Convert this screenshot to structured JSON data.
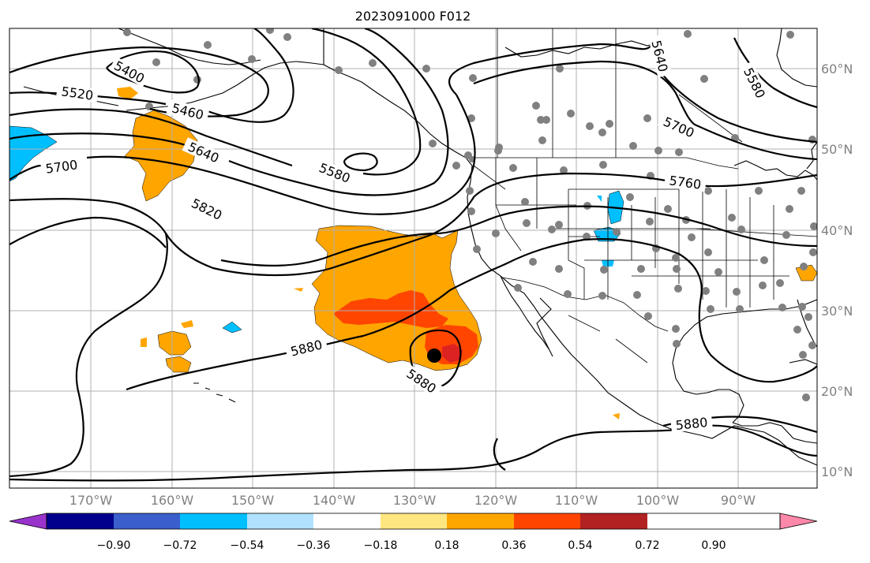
{
  "title": "2023091000 F012",
  "lon_labels": [
    "170°W",
    "160°W",
    "150°W",
    "140°W",
    "130°W",
    "120°W",
    "110°W",
    "100°W",
    "90°W"
  ],
  "lat_labels": [
    "10°N",
    "20°N",
    "30°N",
    "40°N",
    "50°N",
    "60°N"
  ],
  "colorbar": {
    "tick_labels": [
      "−0.90",
      "−0.72",
      "−0.54",
      "−0.36",
      "−0.18",
      "0.18",
      "0.36",
      "0.54",
      "0.72",
      "0.90"
    ],
    "colors": [
      "#9933cc",
      "#00008b",
      "#3a5fcd",
      "#00bfff",
      "#b0e2ff",
      "#ffffff",
      "#ffe680",
      "#ffa500",
      "#ff4500",
      "#b22222",
      "#ff88aa"
    ]
  },
  "contour_labels": [
    "5400",
    "5460",
    "5520",
    "5580",
    "5640",
    "5640",
    "5700",
    "5700",
    "5760",
    "5820",
    "5880",
    "5880",
    "5880",
    "5580"
  ],
  "colors": {
    "orange": "#ffa500",
    "red": "#ff4500",
    "darkred": "#dd2222",
    "cyan": "#00bfff",
    "station": "#808080"
  }
}
